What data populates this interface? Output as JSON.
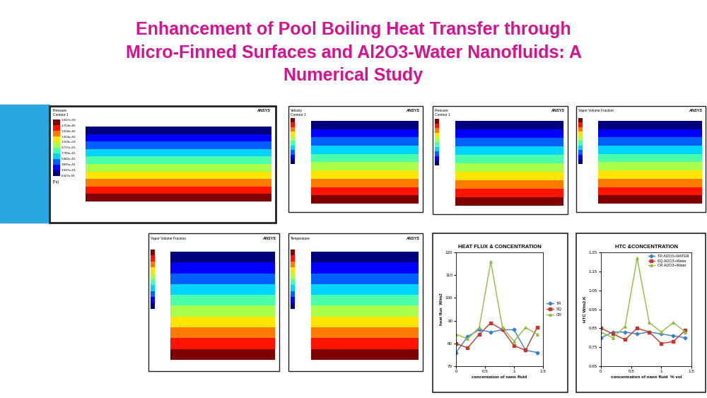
{
  "header": {
    "title_lines": [
      "Enhancement of Pool Boiling Heat Transfer through",
      "Micro-Finned Surfaces and Al2O3-Water Nanofluids: A",
      "Numerical Study"
    ],
    "color": "#d4148f"
  },
  "panels": [
    {
      "title": "Pressure\nContour 1",
      "levels": [
        "1.947e+02",
        "1.753e+02",
        "1.558e+02",
        "1.363e+02",
        "1.169e+02",
        "9.737e+01",
        "7.789e+01",
        "5.842e+01",
        "3.895e+01",
        "1.947e+01",
        "8.327e-09"
      ],
      "unit": "[Pa]",
      "badge": "ANSYS"
    },
    {
      "title": "Velocity\nContour 1",
      "badge": "ANSYS"
    },
    {
      "title": "Pressure\nContour 1",
      "badge": "ANSYS"
    },
    {
      "title": "Vapor Volume Fraction",
      "badge": "ANSYS"
    },
    {
      "title": "Vapor Volume Fraction",
      "badge": "ANSYS"
    },
    {
      "title": "Temperature",
      "badge": "ANSYS"
    }
  ],
  "chart_data": [
    {
      "type": "line",
      "title": "HEAT FLUX & CONCENTRATION",
      "x_label": "concentation of nano fluid",
      "y_label": "heat flux  W/m2",
      "x": [
        0,
        0.2,
        0.4,
        0.6,
        0.8,
        1.0,
        1.2,
        1.4
      ],
      "series": [
        {
          "name": "TR",
          "color": "#3a7fd0",
          "marker": "diamond",
          "values": [
            76,
            83,
            86,
            85,
            86,
            86,
            77,
            76
          ]
        },
        {
          "name": "SQ",
          "color": "#c0392b",
          "marker": "square",
          "values": [
            80,
            78,
            84,
            89,
            86,
            79,
            77,
            87
          ]
        },
        {
          "name": "CR",
          "color": "#8fbc3f",
          "marker": "triangle",
          "values": [
            84,
            82,
            87,
            116,
            87,
            81,
            87,
            84
          ]
        }
      ],
      "xlim": [
        0,
        1.5
      ],
      "xticks": [
        0,
        0.5,
        1,
        1.5
      ],
      "ylim": [
        70,
        120
      ],
      "yticks": [
        70,
        80,
        90,
        100,
        110,
        120
      ],
      "grid": false,
      "legend": "right"
    },
    {
      "type": "line",
      "title": "HTC &CONCENTRATION",
      "x_label": "concentration of nano fluid  % vol",
      "y_label": "HTC W/m2.K",
      "x": [
        0,
        0.2,
        0.4,
        0.6,
        0.8,
        1.0,
        1.2,
        1.4
      ],
      "series": [
        {
          "name": "TR Al2O3+WATER",
          "color": "#3a7fd0",
          "marker": "diamond",
          "values": [
            0.8,
            0.83,
            0.83,
            0.82,
            0.83,
            0.82,
            0.81,
            0.8
          ]
        },
        {
          "name": "SQ Al2O3+Water",
          "color": "#c0392b",
          "marker": "square",
          "values": [
            0.85,
            0.82,
            0.79,
            0.85,
            0.83,
            0.77,
            0.78,
            0.84
          ]
        },
        {
          "name": "CR Al2O3+Water",
          "color": "#8fbc3f",
          "marker": "triangle",
          "values": [
            0.83,
            0.8,
            0.86,
            1.22,
            0.88,
            0.83,
            0.88,
            0.83
          ]
        }
      ],
      "xlim": [
        0,
        1.5
      ],
      "xticks": [
        0,
        0.5,
        1,
        1.5
      ],
      "ylim": [
        0.65,
        1.25
      ],
      "yticks": [
        0.65,
        0.75,
        0.85,
        0.95,
        1.05,
        1.15,
        1.25
      ],
      "grid": false,
      "legend": "upper right"
    }
  ]
}
